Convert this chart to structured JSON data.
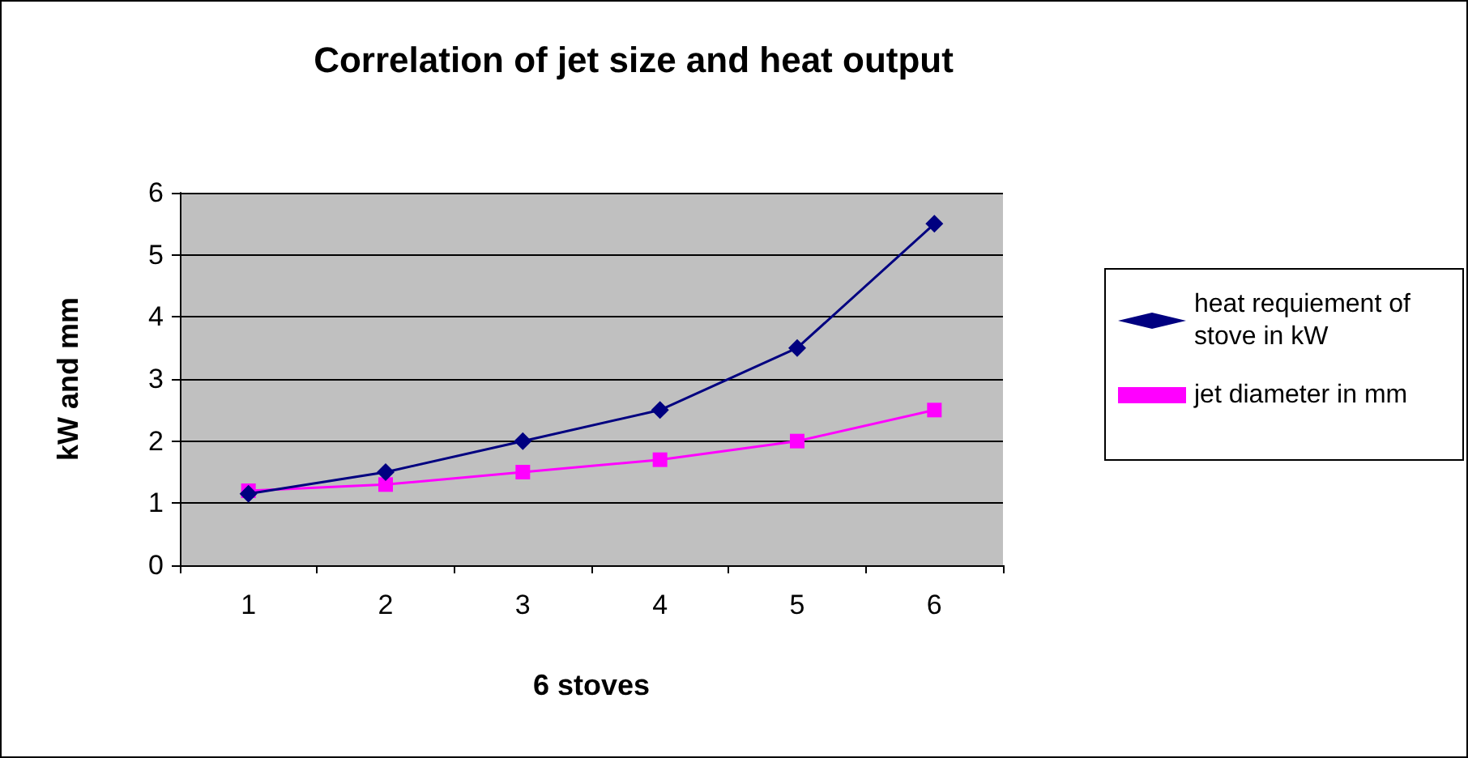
{
  "chart_data": {
    "type": "line",
    "title": "Correlation of jet size and heat output",
    "xlabel": "6 stoves",
    "ylabel": "kW and mm",
    "categories": [
      "1",
      "2",
      "3",
      "4",
      "5",
      "6"
    ],
    "series": [
      {
        "name": "heat requiement of stove in kW",
        "color": "#000080",
        "marker": "diamond",
        "values": [
          1.15,
          1.5,
          2.0,
          2.5,
          3.5,
          5.5
        ]
      },
      {
        "name": "jet diameter in mm",
        "color": "#ff00ff",
        "marker": "square",
        "values": [
          1.2,
          1.3,
          1.5,
          1.7,
          2.0,
          2.5
        ]
      }
    ],
    "ylim": [
      0,
      6
    ],
    "yticks": [
      0,
      1,
      2,
      3,
      4,
      5,
      6
    ],
    "grid": "y",
    "legend": "right"
  }
}
